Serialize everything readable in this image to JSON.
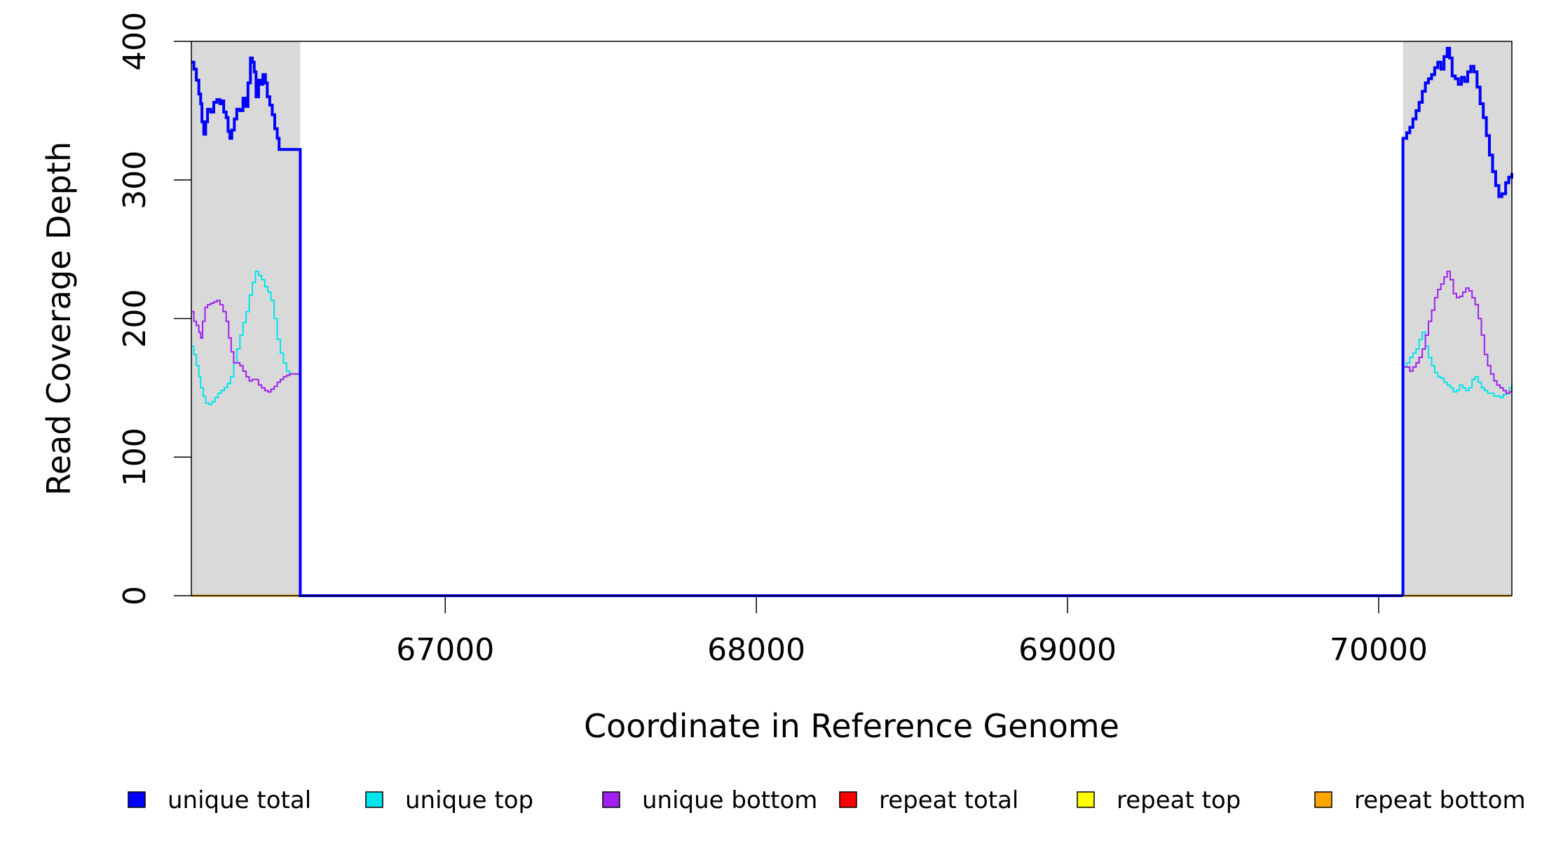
{
  "chart_data": {
    "type": "line",
    "title": "",
    "xlabel": "Coordinate in Reference Genome",
    "ylabel": "Read Coverage Depth",
    "xlim": [
      66184,
      70428
    ],
    "ylim": [
      0,
      400
    ],
    "x_ticks": [
      67000,
      68000,
      69000,
      70000
    ],
    "y_ticks": [
      0,
      100,
      200,
      300,
      400
    ],
    "shaded_regions": [
      [
        66184,
        66534
      ],
      [
        70078,
        70428
      ]
    ],
    "shade_color": "#d9d9d9",
    "grid": false,
    "legend_position": "bottom",
    "series": [
      {
        "name": "unique total",
        "color": "#0000ff",
        "segments": [
          [
            [
              66184,
              385
            ],
            [
              66192,
              380
            ],
            [
              66200,
              372
            ],
            [
              66208,
              362
            ],
            [
              66214,
              355
            ],
            [
              66218,
              342
            ],
            [
              66224,
              333
            ],
            [
              66230,
              342
            ],
            [
              66236,
              351
            ],
            [
              66246,
              349
            ],
            [
              66256,
              356
            ],
            [
              66266,
              358
            ],
            [
              66276,
              355
            ],
            [
              66282,
              357
            ],
            [
              66288,
              349
            ],
            [
              66296,
              345
            ],
            [
              66302,
              335
            ],
            [
              66308,
              330
            ],
            [
              66314,
              336
            ],
            [
              66322,
              344
            ],
            [
              66330,
              351
            ],
            [
              66340,
              350
            ],
            [
              66350,
              359
            ],
            [
              66358,
              353
            ],
            [
              66366,
              370
            ],
            [
              66374,
              388
            ],
            [
              66380,
              385
            ],
            [
              66386,
              378
            ],
            [
              66392,
              360
            ],
            [
              66400,
              372
            ],
            [
              66408,
              369
            ],
            [
              66414,
              376
            ],
            [
              66422,
              370
            ],
            [
              66428,
              360
            ],
            [
              66436,
              354
            ],
            [
              66444,
              347
            ],
            [
              66452,
              337
            ],
            [
              66460,
              330
            ],
            [
              66466,
              322
            ],
            [
              66534,
              322
            ],
            [
              66534,
              0
            ],
            [
              66600,
              0
            ],
            [
              67000,
              0
            ],
            [
              67500,
              0
            ],
            [
              68000,
              0
            ],
            [
              68500,
              0
            ],
            [
              69000,
              0
            ],
            [
              69500,
              0
            ],
            [
              70000,
              0
            ],
            [
              70078,
              0
            ]
          ],
          [
            [
              70078,
              0
            ],
            [
              70078,
              330
            ],
            [
              70090,
              334
            ],
            [
              70100,
              338
            ],
            [
              70110,
              344
            ],
            [
              70120,
              350
            ],
            [
              70130,
              356
            ],
            [
              70140,
              364
            ],
            [
              70150,
              370
            ],
            [
              70160,
              373
            ],
            [
              70170,
              376
            ],
            [
              70180,
              381
            ],
            [
              70190,
              385
            ],
            [
              70200,
              380
            ],
            [
              70210,
              389
            ],
            [
              70220,
              395
            ],
            [
              70228,
              388
            ],
            [
              70236,
              375
            ],
            [
              70246,
              373
            ],
            [
              70256,
              369
            ],
            [
              70266,
              374
            ],
            [
              70276,
              371
            ],
            [
              70286,
              378
            ],
            [
              70296,
              382
            ],
            [
              70306,
              378
            ],
            [
              70316,
              367
            ],
            [
              70326,
              355
            ],
            [
              70336,
              345
            ],
            [
              70346,
              332
            ],
            [
              70356,
              318
            ],
            [
              70366,
              306
            ],
            [
              70376,
              296
            ],
            [
              70386,
              288
            ],
            [
              70396,
              290
            ],
            [
              70408,
              298
            ],
            [
              70418,
              302
            ],
            [
              70428,
              305
            ]
          ]
        ]
      },
      {
        "name": "unique top",
        "color": "#00e5ee",
        "segments": [
          [
            [
              66184,
              180
            ],
            [
              66192,
              174
            ],
            [
              66200,
              166
            ],
            [
              66208,
              158
            ],
            [
              66214,
              150
            ],
            [
              66222,
              144
            ],
            [
              66230,
              139
            ],
            [
              66240,
              138
            ],
            [
              66250,
              140
            ],
            [
              66260,
              143
            ],
            [
              66270,
              146
            ],
            [
              66280,
              148
            ],
            [
              66290,
              150
            ],
            [
              66300,
              153
            ],
            [
              66310,
              158
            ],
            [
              66320,
              168
            ],
            [
              66330,
              178
            ],
            [
              66340,
              188
            ],
            [
              66350,
              197
            ],
            [
              66360,
              205
            ],
            [
              66370,
              217
            ],
            [
              66380,
              226
            ],
            [
              66390,
              234
            ],
            [
              66400,
              231
            ],
            [
              66410,
              228
            ],
            [
              66420,
              223
            ],
            [
              66430,
              219
            ],
            [
              66440,
              213
            ],
            [
              66450,
              200
            ],
            [
              66460,
              185
            ],
            [
              66470,
              175
            ],
            [
              66480,
              168
            ],
            [
              66490,
              162
            ],
            [
              66500,
              160
            ],
            [
              66534,
              160
            ],
            [
              66534,
              0
            ],
            [
              66600,
              0
            ],
            [
              67000,
              0
            ],
            [
              67500,
              0
            ],
            [
              68000,
              0
            ],
            [
              68500,
              0
            ],
            [
              69000,
              0
            ],
            [
              69500,
              0
            ],
            [
              70000,
              0
            ],
            [
              70078,
              0
            ]
          ],
          [
            [
              70078,
              0
            ],
            [
              70078,
              165
            ],
            [
              70090,
              168
            ],
            [
              70100,
              172
            ],
            [
              70110,
              175
            ],
            [
              70120,
              178
            ],
            [
              70130,
              185
            ],
            [
              70140,
              190
            ],
            [
              70150,
              180
            ],
            [
              70160,
              172
            ],
            [
              70170,
              166
            ],
            [
              70180,
              161
            ],
            [
              70190,
              158
            ],
            [
              70200,
              157
            ],
            [
              70210,
              154
            ],
            [
              70220,
              152
            ],
            [
              70230,
              150
            ],
            [
              70240,
              147
            ],
            [
              70250,
              148
            ],
            [
              70260,
              152
            ],
            [
              70270,
              150
            ],
            [
              70280,
              148
            ],
            [
              70290,
              150
            ],
            [
              70300,
              156
            ],
            [
              70310,
              158
            ],
            [
              70320,
              154
            ],
            [
              70330,
              150
            ],
            [
              70340,
              148
            ],
            [
              70350,
              146
            ],
            [
              70360,
              146
            ],
            [
              70370,
              144
            ],
            [
              70380,
              144
            ],
            [
              70390,
              143
            ],
            [
              70400,
              145
            ],
            [
              70410,
              146
            ],
            [
              70420,
              150
            ],
            [
              70428,
              154
            ]
          ]
        ]
      },
      {
        "name": "unique bottom",
        "color": "#a020f0",
        "segments": [
          [
            [
              66184,
              205
            ],
            [
              66192,
              198
            ],
            [
              66200,
              195
            ],
            [
              66208,
              190
            ],
            [
              66214,
              186
            ],
            [
              66220,
              198
            ],
            [
              66228,
              208
            ],
            [
              66236,
              210
            ],
            [
              66246,
              211
            ],
            [
              66256,
              212
            ],
            [
              66266,
              213
            ],
            [
              66276,
              210
            ],
            [
              66286,
              205
            ],
            [
              66296,
              198
            ],
            [
              66304,
              186
            ],
            [
              66312,
              176
            ],
            [
              66320,
              168
            ],
            [
              66330,
              168
            ],
            [
              66340,
              166
            ],
            [
              66350,
              162
            ],
            [
              66360,
              158
            ],
            [
              66370,
              155
            ],
            [
              66380,
              156
            ],
            [
              66390,
              156
            ],
            [
              66400,
              152
            ],
            [
              66410,
              150
            ],
            [
              66420,
              148
            ],
            [
              66430,
              147
            ],
            [
              66440,
              149
            ],
            [
              66450,
              151
            ],
            [
              66460,
              154
            ],
            [
              66470,
              156
            ],
            [
              66480,
              158
            ],
            [
              66490,
              159
            ],
            [
              66500,
              160
            ],
            [
              66534,
              160
            ],
            [
              66534,
              0
            ],
            [
              66600,
              0
            ],
            [
              67000,
              0
            ],
            [
              67500,
              0
            ],
            [
              68000,
              0
            ],
            [
              68500,
              0
            ],
            [
              69000,
              0
            ],
            [
              69500,
              0
            ],
            [
              70000,
              0
            ],
            [
              70078,
              0
            ]
          ],
          [
            [
              70078,
              0
            ],
            [
              70078,
              165
            ],
            [
              70090,
              165
            ],
            [
              70100,
              162
            ],
            [
              70110,
              165
            ],
            [
              70120,
              168
            ],
            [
              70130,
              172
            ],
            [
              70140,
              178
            ],
            [
              70150,
              188
            ],
            [
              70160,
              198
            ],
            [
              70170,
              206
            ],
            [
              70180,
              215
            ],
            [
              70190,
              221
            ],
            [
              70200,
              225
            ],
            [
              70210,
              230
            ],
            [
              70220,
              234
            ],
            [
              70230,
              228
            ],
            [
              70240,
              218
            ],
            [
              70250,
              215
            ],
            [
              70260,
              216
            ],
            [
              70270,
              219
            ],
            [
              70280,
              222
            ],
            [
              70290,
              220
            ],
            [
              70300,
              215
            ],
            [
              70310,
              210
            ],
            [
              70320,
              200
            ],
            [
              70330,
              188
            ],
            [
              70340,
              174
            ],
            [
              70350,
              166
            ],
            [
              70360,
              160
            ],
            [
              70370,
              155
            ],
            [
              70380,
              152
            ],
            [
              70390,
              150
            ],
            [
              70400,
              148
            ],
            [
              70410,
              146
            ],
            [
              70420,
              147
            ],
            [
              70428,
              149
            ]
          ]
        ]
      },
      {
        "name": "repeat total",
        "color": "#ff0000",
        "segments": [
          [
            [
              66184,
              0
            ],
            [
              70428,
              0
            ]
          ]
        ]
      },
      {
        "name": "repeat top",
        "color": "#ffff00",
        "segments": [
          [
            [
              66184,
              0
            ],
            [
              70428,
              0
            ]
          ]
        ]
      },
      {
        "name": "repeat bottom",
        "color": "#ffa500",
        "segments": [
          [
            [
              66184,
              0
            ],
            [
              70428,
              0
            ]
          ]
        ]
      }
    ]
  }
}
